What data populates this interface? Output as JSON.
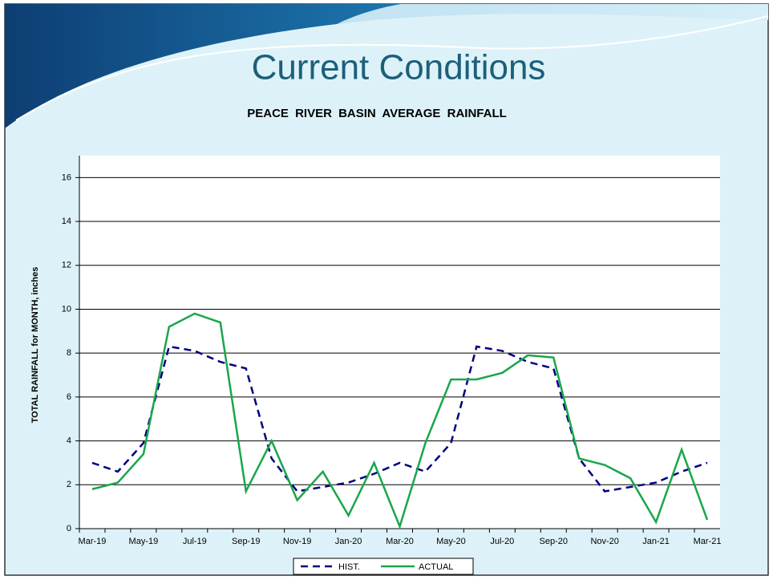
{
  "header": {
    "title": "Current Conditions"
  },
  "chart_data": {
    "type": "line",
    "title": "PEACE RIVER BASIN AVERAGE RAINFALL",
    "y_label": "TOTAL RAINFALL for MONTH, inches",
    "categories": [
      "Mar-19",
      null,
      "May-19",
      null,
      "Jul-19",
      null,
      "Sep-19",
      null,
      "Nov-19",
      null,
      "Jan-20",
      null,
      "Mar-20",
      null,
      "May-20",
      null,
      "Jul-20",
      null,
      "Sep-20",
      null,
      "Nov-20",
      null,
      "Jan-21",
      null,
      "Mar-21"
    ],
    "series": [
      {
        "name": "HIST.",
        "color": "#000080",
        "dashed": true,
        "values": [
          3.0,
          2.6,
          3.9,
          8.3,
          8.1,
          7.6,
          7.3,
          3.2,
          1.7,
          1.9,
          2.1,
          2.5,
          3.0,
          2.6,
          3.9,
          8.3,
          8.1,
          7.6,
          7.3,
          3.2,
          1.7,
          1.9,
          2.1,
          2.6,
          3.0
        ]
      },
      {
        "name": "ACTUAL",
        "color": "#1aa64b",
        "dashed": false,
        "values": [
          1.8,
          2.1,
          3.4,
          9.2,
          9.8,
          9.4,
          1.7,
          4.0,
          1.3,
          2.6,
          0.6,
          3.0,
          0.1,
          3.9,
          6.8,
          6.8,
          7.1,
          7.9,
          7.8,
          3.2,
          2.9,
          2.3,
          0.3,
          3.6,
          0.4
        ]
      }
    ],
    "ylim": [
      0,
      17
    ],
    "yticks": [
      0,
      2,
      4,
      6,
      8,
      10,
      12,
      14,
      16
    ],
    "grid": true,
    "legend": "bottom"
  }
}
